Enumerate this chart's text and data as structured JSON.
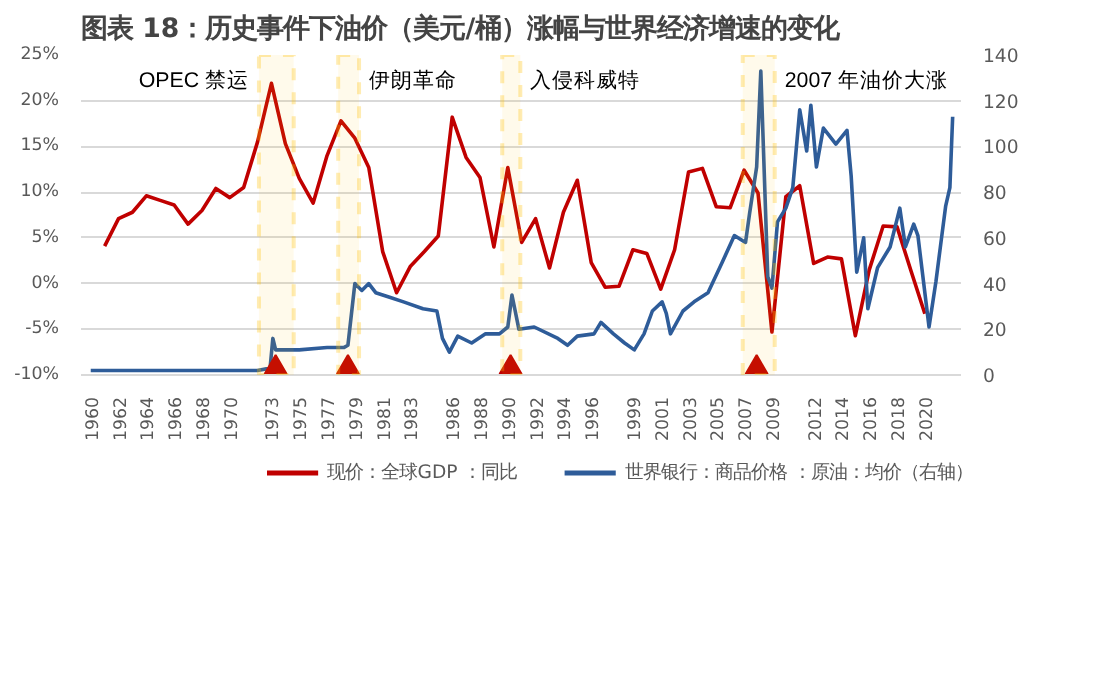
{
  "chart_data": {
    "type": "line",
    "title": "图表 18：历史事件下油价（美元/桶）涨幅与世界经济增速的变化",
    "xlim": [
      1959.3,
      2022.6
    ],
    "xticks": [
      1960,
      1962,
      1964,
      1966,
      1968,
      1970,
      1973,
      1975,
      1977,
      1979,
      1981,
      1983,
      1986,
      1988,
      1990,
      1992,
      1994,
      1996,
      1999,
      2001,
      2003,
      2005,
      2007,
      2009,
      2012,
      2014,
      2016,
      2018,
      2020
    ],
    "ylim": [
      -10,
      25
    ],
    "yticks": [
      {
        "value": -10,
        "label": "-10%"
      },
      {
        "value": -5,
        "label": "-5%"
      },
      {
        "value": 0,
        "label": "0%"
      },
      {
        "value": 5,
        "label": "5%"
      },
      {
        "value": 10,
        "label": "10%"
      },
      {
        "value": 15,
        "label": "15%"
      },
      {
        "value": 20,
        "label": "20%"
      },
      {
        "value": 25,
        "label": "25%"
      }
    ],
    "y2lim": [
      0,
      140
    ],
    "y2ticks": [
      0,
      20,
      40,
      60,
      80,
      100,
      120,
      140
    ],
    "grid": "y",
    "legend": "bottom",
    "line_style": "solid",
    "series": [
      {
        "name": "现价：全球GDP ：同比",
        "color": "#c00000",
        "x": [
          1961,
          1962,
          1963,
          1964,
          1965,
          1966,
          1967,
          1968,
          1969,
          1970,
          1971,
          1972,
          1973,
          1974,
          1975,
          1976,
          1977,
          1978,
          1979,
          1980,
          1981,
          1982,
          1983,
          1984,
          1985,
          1986,
          1987,
          1988,
          1989,
          1990,
          1991,
          1992,
          1993,
          1994,
          1995,
          1996,
          1997,
          1998,
          1999,
          2000,
          2001,
          2002,
          2003,
          2004,
          2005,
          2006,
          2007,
          2008,
          2009,
          2010,
          2011,
          2012,
          2013,
          2014,
          2015,
          2016,
          2017,
          2018,
          2019,
          2020
        ],
        "values": [
          4.1,
          7.1,
          7.8,
          9.6,
          9.1,
          8.6,
          6.5,
          8.0,
          10.4,
          9.4,
          10.5,
          15.5,
          21.9,
          15.3,
          11.5,
          8.8,
          14.0,
          17.8,
          15.9,
          12.7,
          3.5,
          -1.0,
          1.9,
          3.5,
          5.2,
          18.2,
          13.8,
          11.6,
          4.0,
          12.7,
          4.5,
          7.1,
          1.7,
          7.8,
          11.3,
          2.3,
          -0.4,
          -0.3,
          3.7,
          3.3,
          -0.6,
          3.7,
          12.2,
          12.6,
          8.4,
          8.3,
          12.4,
          9.9,
          -5.3,
          9.5,
          10.7,
          2.2,
          2.9,
          2.7,
          -5.7,
          1.5,
          6.3,
          6.2,
          1.4,
          -3.3
        ]
      },
      {
        "name": "世界银行：商品价格 ：原油：均价（右轴）",
        "color": "#2e5c99",
        "axis": "y2",
        "x": [
          1960,
          1965,
          1970.5,
          1971,
          1972,
          1972.9,
          1973.1,
          1973.3,
          1975,
          1977,
          1978.2,
          1978.5,
          1979.0,
          1979.5,
          1980.0,
          1980.5,
          1981.5,
          1982.5,
          1983.9,
          1984.9,
          1985.3,
          1985.8,
          1986.4,
          1987.4,
          1988.4,
          1989.4,
          1990.0,
          1990.3,
          1990.8,
          1991.9,
          1993.6,
          1994.3,
          1995.0,
          1996.2,
          1996.7,
          1997.6,
          1998.4,
          1999.1,
          1999.8,
          2000.4,
          2001.1,
          2001.4,
          2001.7,
          2002.6,
          2003.4,
          2004.4,
          2005.4,
          2006.3,
          2007.1,
          2007.4,
          2007.9,
          2008.2,
          2008.7,
          2009.0,
          2009.4,
          2010.0,
          2010.5,
          2011.0,
          2011.5,
          2011.8,
          2012.2,
          2012.7,
          2013.6,
          2014.4,
          2014.7,
          2015.1,
          2015.6,
          2015.9,
          2016.6,
          2017.5,
          2018.2,
          2018.6,
          2019.2,
          2019.5,
          2020.3,
          2020.8,
          2021.2,
          2021.5,
          2021.8,
          2022.0
        ],
        "values": [
          2,
          2,
          2,
          2,
          2,
          3,
          16,
          11,
          11,
          12,
          12,
          13,
          40,
          37,
          40,
          36,
          34,
          32,
          29,
          28,
          16,
          10,
          17,
          14,
          18,
          18,
          21,
          35,
          20,
          21,
          16,
          13,
          17,
          18,
          23,
          18,
          14,
          11,
          18,
          28,
          32,
          27,
          18,
          28,
          32,
          36,
          49,
          61,
          58,
          71,
          91,
          133,
          43,
          38,
          67,
          73,
          82,
          116,
          98,
          118,
          91,
          108,
          101,
          107,
          87,
          45,
          60,
          29,
          47,
          56,
          73,
          56,
          66,
          61,
          21,
          41,
          60,
          74,
          82,
          113
        ]
      },
      {
        "type": "scatter",
        "marker": "triangle",
        "color": "#c00000",
        "x": [
          1973.3,
          1978.5,
          1990.2,
          2007.9
        ],
        "values": [
          -9.2,
          -9.2,
          -9.2,
          -9.2
        ]
      }
    ],
    "bands": [
      {
        "axis": "x",
        "from": 1972.1,
        "to": 1974.6,
        "color": "#ffc000",
        "label": "OPEC 禁运"
      },
      {
        "axis": "x",
        "from": 1977.8,
        "to": 1979.3,
        "color": "#ffc000",
        "label": "伊朗革命"
      },
      {
        "axis": "x",
        "from": 1989.6,
        "to": 1990.9,
        "color": "#ffc000",
        "label": "入侵科威特"
      },
      {
        "axis": "x",
        "from": 2006.9,
        "to": 2009.2,
        "color": "#ffc000",
        "label": "2007 年油价大涨"
      }
    ]
  }
}
